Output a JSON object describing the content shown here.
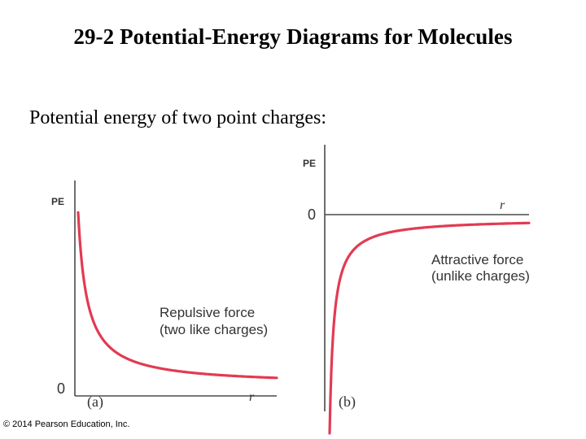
{
  "slide": {
    "title": "29-2 Potential-Energy Diagrams for Molecules",
    "subtitle": "Potential energy of two point charges:",
    "copyright": "© 2014 Pearson Education, Inc."
  },
  "diagram_a": {
    "y_label": "PE",
    "zero_label": "0",
    "x_label": "r",
    "caption_line1": "Repulsive force",
    "caption_line2": "(two like charges)",
    "panel_label": "(a)",
    "curve": "PE = +k/r"
  },
  "diagram_b": {
    "y_label": "PE",
    "zero_label": "0",
    "x_label": "r",
    "caption_line1": "Attractive force",
    "caption_line2": "(unlike charges)",
    "panel_label": "(b)",
    "curve": "PE = -k/r"
  },
  "colors": {
    "curve": "#e23b52",
    "axis": "#4a4a4a",
    "text": "#333333"
  }
}
